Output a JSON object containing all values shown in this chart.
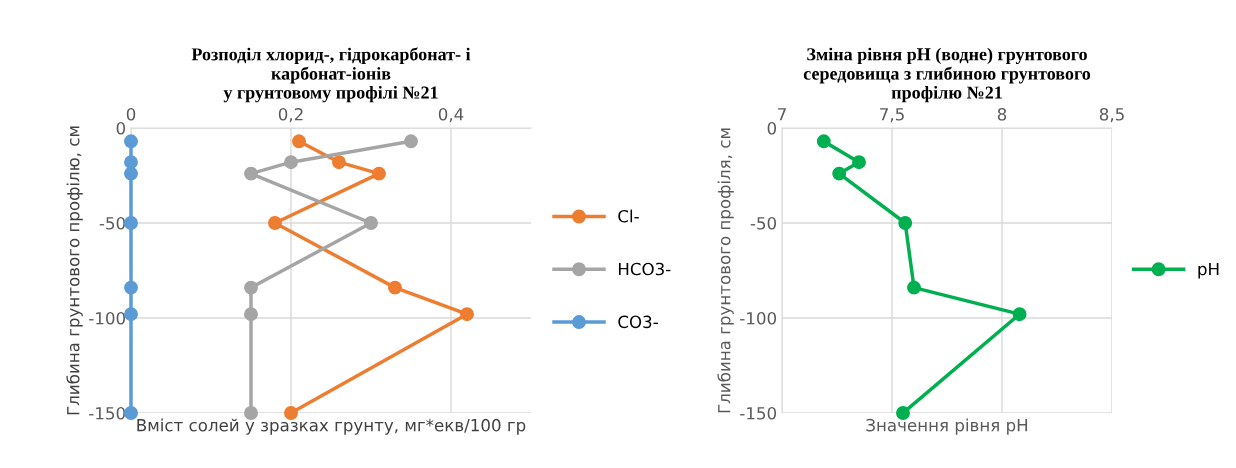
{
  "chart_data": [
    {
      "type": "line",
      "title": "Розподіл хлорид-, гідрокарбонат- і\nкарбонат-іонів\nу грунтовому профілі №21",
      "xlabel": "Вміст солей у зразках грунту, мг*екв/100 гр",
      "ylabel": "Глибина грунтового профілю, см",
      "xlim": [
        0,
        0.5
      ],
      "xticks": [
        {
          "value": 0,
          "label": "0"
        },
        {
          "value": 0.2,
          "label": "0,2"
        },
        {
          "value": 0.4,
          "label": "0,4"
        }
      ],
      "ylim": [
        -150,
        0
      ],
      "yticks": [
        -150,
        -100,
        -50,
        0
      ],
      "grid": true,
      "legend": "right",
      "marker": "circle",
      "line_style": "solid",
      "series": [
        {
          "name": "Cl-",
          "color": "#ed7d31",
          "x": [
            0.21,
            0.26,
            0.31,
            0.18,
            0.33,
            0.42,
            0.2
          ],
          "values": [
            -7,
            -18,
            -24,
            -50,
            -84,
            -98,
            -150
          ]
        },
        {
          "name": "HCO3-",
          "color": "#a5a5a5",
          "x": [
            0.35,
            0.2,
            0.15,
            0.3,
            0.15,
            0.15,
            0.15
          ],
          "values": [
            -7,
            -18,
            -24,
            -50,
            -84,
            -98,
            -150
          ]
        },
        {
          "name": "CO3-",
          "color": "#5b9bd5",
          "x": [
            0,
            0,
            0,
            0,
            0,
            0,
            0
          ],
          "values": [
            -7,
            -18,
            -24,
            -50,
            -84,
            -98,
            -150
          ]
        }
      ]
    },
    {
      "type": "line",
      "title": "Зміна рівня pH (водне) грунтового\nсередовища з глибиною грунтового\nпрофілю №21",
      "xlabel": "Значення рівня pH",
      "ylabel": "Глибина грунтового профіля, см",
      "xlim": [
        7,
        8.5
      ],
      "xticks": [
        7,
        {
          "value": 7.5,
          "label": "7,5"
        },
        8,
        {
          "value": 8.5,
          "label": "8,5"
        }
      ],
      "ylim": [
        -150,
        0
      ],
      "yticks": [
        -150,
        -100,
        -50,
        0
      ],
      "grid": true,
      "legend": "right",
      "marker": "circle",
      "line_style": "solid",
      "series": [
        {
          "name": "pH",
          "color": "#00b050",
          "x": [
            7.19,
            7.35,
            7.26,
            7.56,
            7.6,
            8.08,
            7.55
          ],
          "values": [
            -7,
            -18,
            -24,
            -50,
            -84,
            -98,
            -150
          ]
        }
      ]
    }
  ]
}
